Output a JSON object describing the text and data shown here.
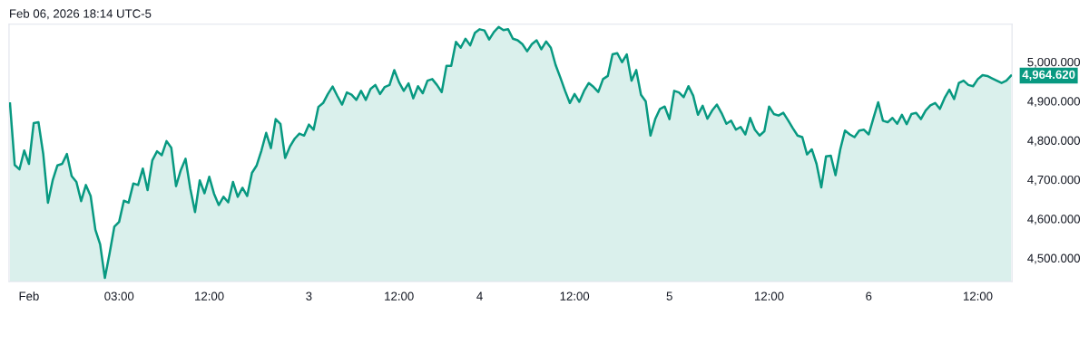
{
  "chart_data": {
    "type": "area",
    "annotations": [
      "Feb 06, 2026 18:14 UTC-5",
      "4,964.620"
    ],
    "categories": [
      null,
      null,
      null,
      null,
      "Feb",
      null,
      null,
      null,
      null,
      null,
      null,
      null,
      null,
      null,
      null,
      null,
      null,
      null,
      null,
      null,
      null,
      null,
      null,
      "03:00",
      null,
      null,
      null,
      null,
      null,
      null,
      null,
      null,
      null,
      null,
      null,
      null,
      null,
      null,
      null,
      null,
      null,
      null,
      "12:00",
      null,
      null,
      null,
      null,
      null,
      null,
      null,
      null,
      null,
      null,
      null,
      null,
      null,
      null,
      null,
      null,
      null,
      null,
      null,
      null,
      "3",
      null,
      null,
      null,
      null,
      null,
      null,
      null,
      null,
      null,
      null,
      null,
      null,
      null,
      null,
      null,
      null,
      null,
      null,
      "12:00",
      null,
      null,
      null,
      null,
      null,
      null,
      null,
      null,
      null,
      null,
      null,
      null,
      null,
      null,
      null,
      null,
      "4",
      null,
      null,
      null,
      null,
      null,
      null,
      null,
      null,
      null,
      null,
      null,
      null,
      null,
      null,
      null,
      null,
      null,
      null,
      null,
      "12:00",
      null,
      null,
      null,
      null,
      null,
      null,
      null,
      null,
      null,
      null,
      null,
      null,
      null,
      null,
      null,
      null,
      null,
      null,
      null,
      "5",
      null,
      null,
      null,
      null,
      null,
      null,
      null,
      null,
      null,
      null,
      null,
      null,
      null,
      null,
      null,
      null,
      null,
      null,
      null,
      null,
      "12:00",
      null,
      null,
      null,
      null,
      null,
      null,
      null,
      null,
      null,
      null,
      null,
      null,
      null,
      null,
      null,
      null,
      null,
      null,
      null,
      null,
      "6",
      null,
      null,
      null,
      null,
      null,
      null,
      null,
      null,
      null,
      null,
      null,
      null,
      null,
      null,
      null,
      null,
      null,
      null,
      null,
      null,
      null,
      null,
      "12:00",
      null,
      null,
      null,
      null,
      null,
      null,
      null
    ],
    "series": [
      {
        "color": "#089981",
        "values": [
          4894,
          4737,
          4726,
          4774,
          4740,
          4844,
          4846,
          4766,
          4641,
          4698,
          4736,
          4740,
          4765,
          4709,
          4694,
          4645,
          4686,
          4658,
          4572,
          4535,
          4449,
          4512,
          4580,
          4592,
          4646,
          4641,
          4690,
          4686,
          4728,
          4673,
          4749,
          4772,
          4762,
          4798,
          4781,
          4683,
          4724,
          4753,
          4677,
          4617,
          4698,
          4665,
          4707,
          4664,
          4635,
          4656,
          4642,
          4694,
          4656,
          4679,
          4658,
          4717,
          4736,
          4774,
          4819,
          4780,
          4854,
          4842,
          4755,
          4784,
          4804,
          4817,
          4812,
          4840,
          4827,
          4885,
          4895,
          4918,
          4937,
          4913,
          4891,
          4922,
          4916,
          4903,
          4926,
          4903,
          4931,
          4941,
          4918,
          4936,
          4941,
          4979,
          4948,
          4926,
          4945,
          4907,
          4938,
          4920,
          4952,
          4956,
          4941,
          4923,
          4990,
          4990,
          5051,
          5036,
          5059,
          5042,
          5074,
          5083,
          5080,
          5057,
          5076,
          5089,
          5081,
          5083,
          5059,
          5055,
          5045,
          5027,
          5045,
          5055,
          5032,
          5052,
          5036,
          4992,
          4960,
          4926,
          4895,
          4918,
          4898,
          4926,
          4946,
          4936,
          4923,
          4956,
          4964,
          5019,
          5022,
          4999,
          5019,
          4952,
          4979,
          4916,
          4899,
          4812,
          4854,
          4880,
          4886,
          4854,
          4926,
          4922,
          4910,
          4938,
          4914,
          4865,
          4888,
          4855,
          4876,
          4891,
          4869,
          4842,
          4850,
          4827,
          4834,
          4815,
          4857,
          4827,
          4812,
          4823,
          4886,
          4867,
          4863,
          4870,
          4851,
          4831,
          4812,
          4808,
          4764,
          4777,
          4740,
          4680,
          4759,
          4761,
          4711,
          4777,
          4825,
          4815,
          4808,
          4825,
          4827,
          4815,
          4857,
          4897,
          4850,
          4846,
          4857,
          4842,
          4865,
          4841,
          4867,
          4870,
          4854,
          4876,
          4889,
          4895,
          4880,
          4908,
          4929,
          4905,
          4946,
          4952,
          4941,
          4938,
          4956,
          4966,
          4964,
          4958,
          4952,
          4946,
          4952,
          4965
        ]
      }
    ],
    "ylim": [
      4440,
      5096
    ],
    "yticks": [
      {
        "value": 4500,
        "label": "4,500.000"
      },
      {
        "value": 4600,
        "label": "4,600.000"
      },
      {
        "value": 4700,
        "label": "4,700.000"
      },
      {
        "value": 4800,
        "label": "4,800.000"
      },
      {
        "value": 4900,
        "label": "4,900.000"
      },
      {
        "value": 5000,
        "label": "5,000.000"
      }
    ]
  }
}
